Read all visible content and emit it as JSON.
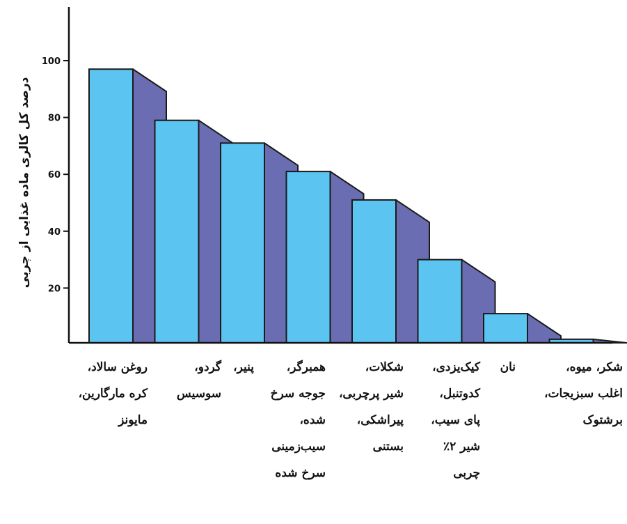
{
  "chart_data": {
    "type": "bar",
    "title": "",
    "xlabel": "",
    "ylabel": "درصد کل کالری ماده غذایی از چربی",
    "yticks": [
      20,
      40,
      60,
      80,
      100
    ],
    "ylim": [
      0,
      100
    ],
    "categories": [
      "روغن سالاد، کره مارگارین، مایونز",
      "گردو، سوسیس",
      "پنیر،",
      "همبرگر، جوجه سرخ شده، سیب‌زمینی سرخ شده",
      "شکلات، شیر پرچربی، پیراشکی، بستنی",
      "کیک‌یزدی، کدوتنبل، پای سیب، شیر ۲٪ چربی",
      "نان",
      "شکر، میوه، اغلب سبزیجات، برشتوک"
    ],
    "values": [
      97,
      79,
      71,
      61,
      51,
      30,
      11,
      2
    ],
    "label_lines": [
      [
        "روغن سالاد،",
        "کره مارگارین،",
        "مایونز"
      ],
      [
        "گردو،",
        "سوسیس"
      ],
      [
        "پنیر،"
      ],
      [
        "همبرگر،",
        "جوجه سرخ",
        "شده،",
        "سیب‌زمینی",
        "سرخ شده"
      ],
      [
        "شکلات،",
        "شیر پرچربی،",
        "پیراشکی،",
        "بستنی"
      ],
      [
        "کیک‌یزدی،",
        "کدوتنبل،",
        "پای سیب،",
        "شیر ۲٪",
        "چربی"
      ],
      [
        "نان"
      ],
      [
        "شکر، میوه،",
        "اغلب سبزیجات،",
        "برشتوک"
      ]
    ],
    "colors": {
      "front": "#5bc4f0",
      "side": "#6b6db2",
      "outline": "#1a1a1a"
    },
    "grid": false
  }
}
